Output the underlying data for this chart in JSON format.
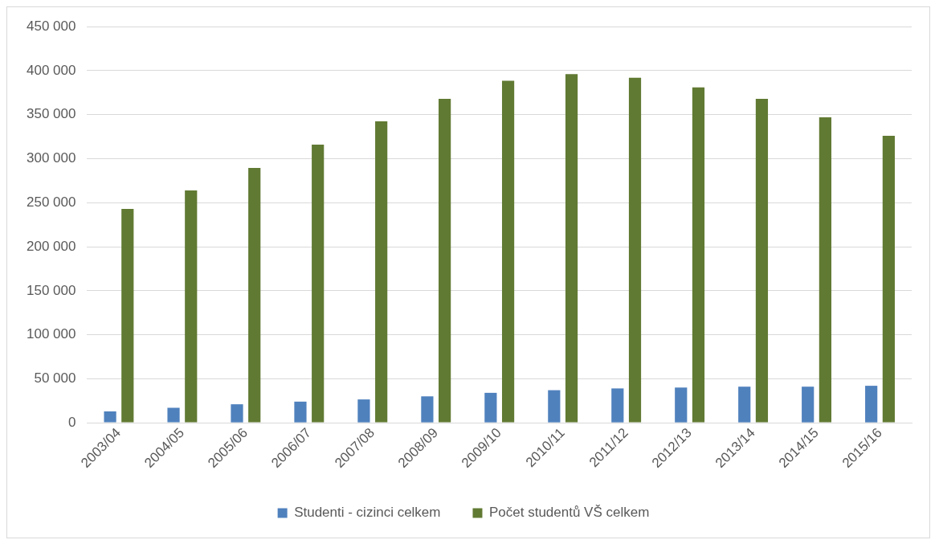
{
  "chart_data": {
    "type": "bar",
    "categories": [
      "2003/04",
      "2004/05",
      "2005/06",
      "2006/07",
      "2007/08",
      "2008/09",
      "2009/10",
      "2010/11",
      "2011/12",
      "2012/13",
      "2013/14",
      "2014/15",
      "2015/16"
    ],
    "series": [
      {
        "name": "Studenti - cizinci celkem",
        "color": "#4f81bd",
        "values": [
          13000,
          17000,
          21000,
          24000,
          26500,
          30000,
          34000,
          37000,
          39000,
          40000,
          41000,
          41000,
          42000
        ]
      },
      {
        "name": "Počet studentů VŠ celkem",
        "color": "#617a33",
        "values": [
          243000,
          264000,
          289500,
          316000,
          342500,
          368000,
          388500,
          396000,
          392000,
          381000,
          368000,
          347000,
          326000
        ]
      }
    ],
    "ylim": [
      0,
      450000
    ],
    "yticks": [
      {
        "value": 0,
        "label": "0"
      },
      {
        "value": 50000,
        "label": "50 000"
      },
      {
        "value": 100000,
        "label": "100 000"
      },
      {
        "value": 150000,
        "label": "150 000"
      },
      {
        "value": 200000,
        "label": "200 000"
      },
      {
        "value": 250000,
        "label": "250 000"
      },
      {
        "value": 300000,
        "label": "300 000"
      },
      {
        "value": 350000,
        "label": "350 000"
      },
      {
        "value": 400000,
        "label": "400 000"
      },
      {
        "value": 450000,
        "label": "450 000"
      }
    ],
    "grid": "y",
    "legend": "bottom"
  }
}
